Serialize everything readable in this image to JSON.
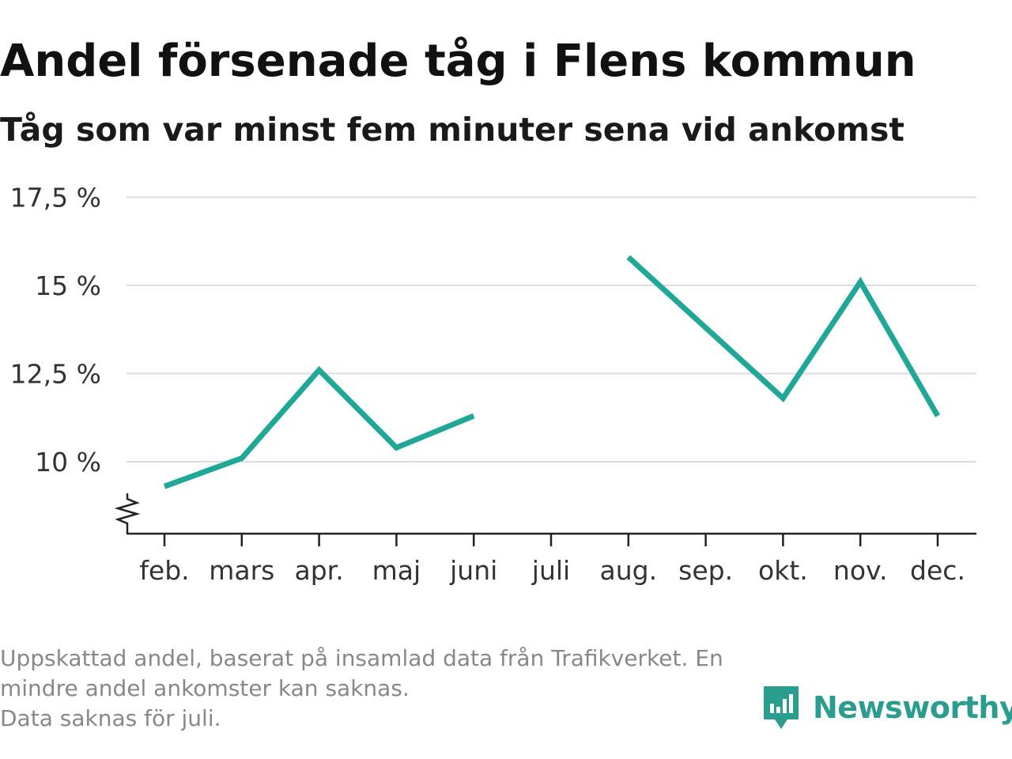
{
  "title": "Andel försenade tåg i Flens kommun",
  "subtitle": "Tåg som var minst fem minuter sena vid ankomst",
  "footnote": {
    "line1": "Uppskattad andel, baserat på insamlad data från Trafikverket. En mindre andel ankomster kan saknas.",
    "line2": "Data saknas för juli."
  },
  "brand": {
    "name": "Newsworthy",
    "icon": "newsworthy-logo-icon"
  },
  "colors": {
    "line": "#1fa898",
    "grid": "#dddddd",
    "axis": "#222222",
    "brand": "#2a9d8f",
    "footnote": "#888888"
  },
  "chart_data": {
    "type": "line",
    "title": "Andel försenade tåg i Flens kommun",
    "subtitle": "Tåg som var minst fem minuter sena vid ankomst",
    "xlabel": "",
    "ylabel": "",
    "categories": [
      "feb.",
      "mars",
      "apr.",
      "maj",
      "juni",
      "juli",
      "aug.",
      "sep.",
      "okt.",
      "nov.",
      "dec."
    ],
    "series": [
      {
        "values": [
          9.3,
          10.1,
          12.6,
          10.4,
          11.3,
          null,
          15.8,
          13.8,
          11.8,
          15.1,
          11.3
        ]
      }
    ],
    "y_ticks": [
      10,
      12.5,
      15,
      17.5
    ],
    "y_tick_labels": [
      "10 %",
      "12,5 %",
      "15 %",
      "17,5 %"
    ],
    "ylim": [
      8,
      17.5
    ],
    "y_axis_broken": true,
    "grid": true,
    "legend": "none"
  }
}
